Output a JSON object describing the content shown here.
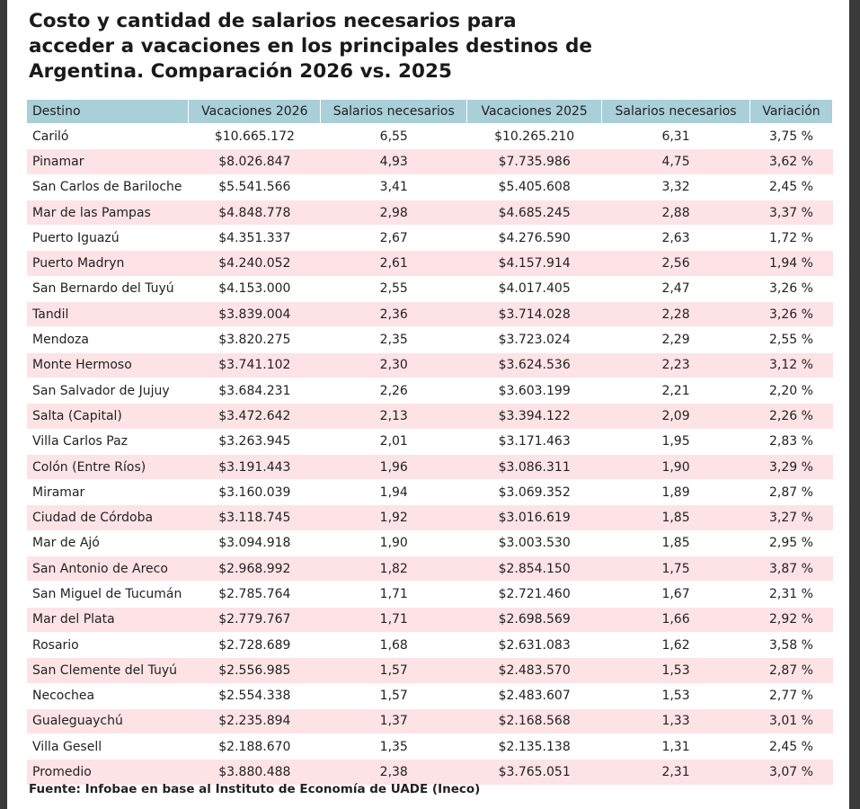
{
  "header": {
    "title": "Costo y cantidad de salarios necesarios para acceder a vacaciones en los principales destinos de Argentina. Comparación 2026 vs. 2025"
  },
  "table": {
    "columns": [
      "Destino",
      "Vacaciones 2026",
      "Salarios necesarios",
      "Vacaciones 2025",
      "Salarios necesarios",
      "Variación"
    ],
    "rows": [
      [
        "Cariló",
        "$10.665.172",
        "6,55",
        "$10.265.210",
        "6,31",
        "3,75 %"
      ],
      [
        "Pinamar",
        "$8.026.847",
        "4,93",
        "$7.735.986",
        "4,75",
        "3,62 %"
      ],
      [
        "San Carlos de Bariloche",
        "$5.541.566",
        "3,41",
        "$5.405.608",
        "3,32",
        "2,45 %"
      ],
      [
        "Mar de las Pampas",
        "$4.848.778",
        "2,98",
        "$4.685.245",
        "2,88",
        "3,37 %"
      ],
      [
        "Puerto Iguazú",
        "$4.351.337",
        "2,67",
        "$4.276.590",
        "2,63",
        "1,72 %"
      ],
      [
        "Puerto Madryn",
        "$4.240.052",
        "2,61",
        "$4.157.914",
        "2,56",
        "1,94 %"
      ],
      [
        "San Bernardo del Tuyú",
        "$4.153.000",
        "2,55",
        "$4.017.405",
        "2,47",
        "3,26 %"
      ],
      [
        "Tandil",
        "$3.839.004",
        "2,36",
        "$3.714.028",
        "2,28",
        "3,26 %"
      ],
      [
        "Mendoza",
        "$3.820.275",
        "2,35",
        "$3.723.024",
        "2,29",
        "2,55 %"
      ],
      [
        "Monte Hermoso",
        "$3.741.102",
        "2,30",
        "$3.624.536",
        "2,23",
        "3,12 %"
      ],
      [
        "San Salvador de Jujuy",
        "$3.684.231",
        "2,26",
        "$3.603.199",
        "2,21",
        "2,20 %"
      ],
      [
        "Salta (Capital)",
        "$3.472.642",
        "2,13",
        "$3.394.122",
        "2,09",
        "2,26 %"
      ],
      [
        "Villa Carlos Paz",
        "$3.263.945",
        "2,01",
        "$3.171.463",
        "1,95",
        "2,83 %"
      ],
      [
        "Colón (Entre Ríos)",
        "$3.191.443",
        "1,96",
        "$3.086.311",
        "1,90",
        "3,29 %"
      ],
      [
        "Miramar",
        "$3.160.039",
        "1,94",
        "$3.069.352",
        "1,89",
        "2,87 %"
      ],
      [
        "Ciudad de Córdoba",
        "$3.118.745",
        "1,92",
        "$3.016.619",
        "1,85",
        "3,27 %"
      ],
      [
        "Mar de Ajó",
        "$3.094.918",
        "1,90",
        "$3.003.530",
        "1,85",
        "2,95 %"
      ],
      [
        "San Antonio de Areco",
        "$2.968.992",
        "1,82",
        "$2.854.150",
        "1,75",
        "3,87 %"
      ],
      [
        "San Miguel de Tucumán",
        "$2.785.764",
        "1,71",
        "$2.721.460",
        "1,67",
        "2,31 %"
      ],
      [
        "Mar del Plata",
        "$2.779.767",
        "1,71",
        "$2.698.569",
        "1,66",
        "2,92 %"
      ],
      [
        "Rosario",
        "$2.728.689",
        "1,68",
        "$2.631.083",
        "1,62",
        "3,58 %"
      ],
      [
        "San Clemente del Tuyú",
        "$2.556.985",
        "1,57",
        "$2.483.570",
        "1,53",
        "2,87 %"
      ],
      [
        "Necochea",
        "$2.554.338",
        "1,57",
        "$2.483.607",
        "1,53",
        "2,77 %"
      ],
      [
        "Gualeguaychú",
        "$2.235.894",
        "1,37",
        "$2.168.568",
        "1,33",
        "3,01 %"
      ],
      [
        "Villa Gesell",
        "$2.188.670",
        "1,35",
        "$2.135.138",
        "1,31",
        "2,45 %"
      ],
      [
        "Promedio",
        "$3.880.488",
        "2,38",
        "$3.765.051",
        "2,31",
        "3,07 %"
      ]
    ]
  },
  "footer": {
    "source": "Fuente: Infobae en base al Instituto de Economía de UADE (Ineco)"
  }
}
